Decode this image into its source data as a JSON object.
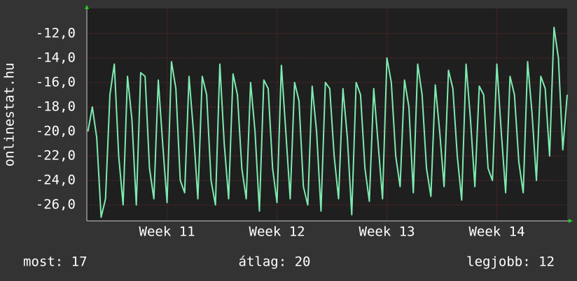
{
  "chart_data": {
    "type": "line",
    "y_label": "onlinestat.hu",
    "color": "#7eeab0",
    "grid": true,
    "xlim": [
      10.27,
      14.64
    ],
    "ylim": [
      -27.3,
      -9.95
    ],
    "xticks": [
      {
        "value": 11,
        "label": "Week 11"
      },
      {
        "value": 12,
        "label": "Week 12"
      },
      {
        "value": 13,
        "label": "Week 13"
      },
      {
        "value": 14,
        "label": "Week 14"
      }
    ],
    "yticks": [
      {
        "value": -12,
        "label": "-12,0"
      },
      {
        "value": -14,
        "label": "-14,0"
      },
      {
        "value": -16,
        "label": "-16,0"
      },
      {
        "value": -18,
        "label": "-18,0"
      },
      {
        "value": -20,
        "label": "-20,0"
      },
      {
        "value": -22,
        "label": "-22,0"
      },
      {
        "value": -24,
        "label": "-24,0"
      },
      {
        "value": -26,
        "label": "-26,0"
      }
    ],
    "x": [
      10.28,
      10.32,
      10.36,
      10.4,
      10.44,
      10.48,
      10.52,
      10.56,
      10.6,
      10.64,
      10.68,
      10.72,
      10.76,
      10.8,
      10.84,
      10.88,
      10.92,
      10.96,
      11.0,
      11.04,
      11.08,
      11.12,
      11.16,
      11.2,
      11.24,
      11.28,
      11.32,
      11.36,
      11.4,
      11.44,
      11.48,
      11.52,
      11.56,
      11.6,
      11.64,
      11.68,
      11.72,
      11.76,
      11.8,
      11.84,
      11.88,
      11.92,
      11.96,
      12.0,
      12.04,
      12.08,
      12.12,
      12.16,
      12.2,
      12.24,
      12.28,
      12.32,
      12.36,
      12.4,
      12.44,
      12.48,
      12.52,
      12.56,
      12.6,
      12.64,
      12.68,
      12.72,
      12.76,
      12.8,
      12.84,
      12.88,
      12.92,
      12.96,
      13.0,
      13.04,
      13.08,
      13.12,
      13.16,
      13.2,
      13.24,
      13.28,
      13.32,
      13.36,
      13.4,
      13.44,
      13.48,
      13.52,
      13.56,
      13.6,
      13.64,
      13.68,
      13.72,
      13.76,
      13.8,
      13.84,
      13.88,
      13.92,
      13.96,
      14.0,
      14.04,
      14.08,
      14.12,
      14.16,
      14.2,
      14.24,
      14.28,
      14.32,
      14.36,
      14.4,
      14.44,
      14.48,
      14.52,
      14.56,
      14.6,
      14.64
    ],
    "values": [
      -20,
      -18,
      -20.5,
      -27,
      -25.5,
      -17,
      -14.5,
      -22,
      -26,
      -15.5,
      -19,
      -26,
      -15.2,
      -15.5,
      -23,
      -25.5,
      -15.8,
      -21,
      -25.8,
      -14.3,
      -16.5,
      -24,
      -25,
      -15.5,
      -20,
      -25.5,
      -15.5,
      -17,
      -24,
      -26,
      -14.5,
      -21,
      -25.5,
      -15.3,
      -17,
      -23,
      -25.5,
      -16,
      -20,
      -26.5,
      -15.8,
      -16.5,
      -23,
      -25.8,
      -14.6,
      -20,
      -25.5,
      -16,
      -17.5,
      -24.5,
      -26,
      -16.3,
      -20,
      -26.5,
      -16,
      -16.5,
      -22,
      -25.5,
      -16.5,
      -20.5,
      -26.8,
      -16,
      -17,
      -23,
      -25.7,
      -16.5,
      -21,
      -25.5,
      -14,
      -16,
      -22,
      -24.5,
      -15.8,
      -18,
      -25,
      -14.5,
      -17,
      -23,
      -25.3,
      -16.2,
      -20,
      -24.5,
      -15,
      -16.5,
      -22,
      -25.6,
      -14.5,
      -19,
      -24.5,
      -16.3,
      -17,
      -23,
      -24,
      -14.5,
      -20,
      -25,
      -15.5,
      -17,
      -22.5,
      -25,
      -14.3,
      -18.5,
      -24,
      -15.5,
      -16.5,
      -22,
      -11.5,
      -14,
      -21.5,
      -17
    ]
  },
  "summary": [
    "most: 17",
    "átlag: 20",
    "legjobb: 12"
  ]
}
